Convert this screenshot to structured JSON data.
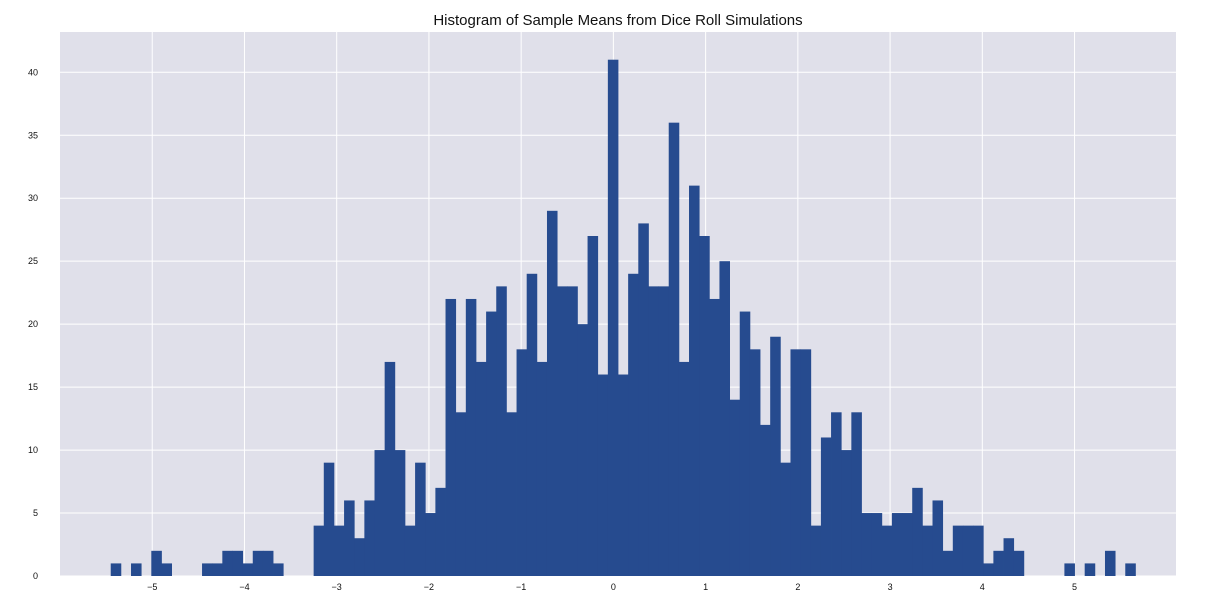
{
  "chart_data": {
    "type": "bar",
    "title": "Histogram of Sample Means from Dice Roll Simulations",
    "xlabel": "",
    "ylabel": "",
    "xlim": [
      -6.0,
      6.1
    ],
    "ylim": [
      0,
      43.2
    ],
    "bin_width": 0.11,
    "bin_starts": [
      -5.45,
      -5.34,
      -5.23,
      -5.12,
      -5.01,
      -4.9,
      -4.79,
      -4.68,
      -4.57,
      -4.46,
      -4.35,
      -4.24,
      -4.13,
      -4.02,
      -3.91,
      -3.8,
      -3.69,
      -3.58,
      -3.47,
      -3.36,
      -3.25,
      -3.14,
      -3.03,
      -2.92,
      -2.81,
      -2.7,
      -2.59,
      -2.48,
      -2.37,
      -2.26,
      -2.15,
      -2.04,
      -1.93,
      -1.82,
      -1.71,
      -1.6,
      -1.49,
      -1.38,
      -1.27,
      -1.16,
      -1.05,
      -0.94,
      -0.83,
      -0.72,
      -0.61,
      -0.5,
      -0.39,
      -0.28,
      -0.17,
      -0.06,
      0.05,
      0.16,
      0.27,
      0.38,
      0.49,
      0.6,
      0.71,
      0.82,
      0.93,
      1.04,
      1.15,
      1.26,
      1.37,
      1.48,
      1.59,
      1.7,
      1.81,
      1.92,
      2.03,
      2.14,
      2.25,
      2.36,
      2.47,
      2.58,
      2.69,
      2.8,
      2.91,
      3.02,
      3.13,
      3.24,
      3.35,
      3.46,
      3.57,
      3.68,
      3.79,
      3.9,
      4.01,
      4.12,
      4.23,
      4.34,
      4.45,
      4.56,
      4.67,
      4.78,
      4.89,
      5.0,
      5.11,
      5.22,
      5.33,
      5.44,
      5.55
    ],
    "values": [
      1,
      0,
      1,
      0,
      2,
      1,
      0,
      0,
      0,
      1,
      1,
      2,
      2,
      1,
      2,
      2,
      1,
      0,
      0,
      0,
      4,
      9,
      4,
      6,
      3,
      6,
      10,
      17,
      10,
      4,
      9,
      5,
      7,
      22,
      13,
      22,
      17,
      21,
      23,
      13,
      18,
      24,
      17,
      29,
      23,
      23,
      20,
      27,
      16,
      41,
      16,
      24,
      28,
      23,
      23,
      36,
      17,
      31,
      27,
      22,
      25,
      14,
      21,
      18,
      12,
      19,
      9,
      18,
      18,
      4,
      11,
      13,
      10,
      13,
      5,
      5,
      4,
      5,
      5,
      7,
      4,
      6,
      2,
      4,
      4,
      4,
      1,
      2,
      3,
      2,
      0,
      0,
      0,
      0,
      1,
      0,
      1,
      0,
      2,
      0,
      1
    ],
    "x_ticks": [
      -5,
      -4,
      -3,
      -2,
      -1,
      0,
      1,
      2,
      3,
      4,
      5
    ],
    "x_tick_labels": [
      "−5",
      "−4",
      "−3",
      "−2",
      "−1",
      "0",
      "1",
      "2",
      "3",
      "4",
      "5"
    ],
    "y_ticks": [
      0,
      5,
      10,
      15,
      20,
      25,
      30,
      35,
      40
    ],
    "y_tick_labels": [
      "0",
      "5",
      "10",
      "15",
      "20",
      "25",
      "30",
      "35",
      "40"
    ],
    "grid": true,
    "legend": "none"
  },
  "colors": {
    "bar": "#264b8f",
    "plot_background": "#e0e0ea",
    "grid": "#ffffff",
    "text": "#111111"
  }
}
